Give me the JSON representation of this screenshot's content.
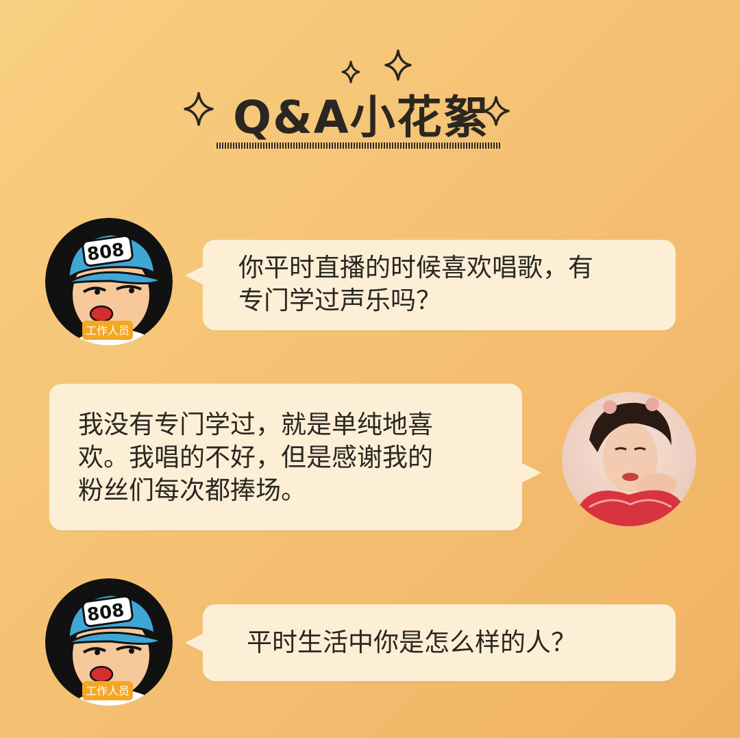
{
  "header": {
    "title": "Q&A小花絮"
  },
  "staff_avatar": {
    "cap_number": "808",
    "badge": "工作人员"
  },
  "messages": [
    {
      "speaker": "staff",
      "text": "你平时直播的时候喜欢唱歌，有\n专门学过声乐吗？"
    },
    {
      "speaker": "guest",
      "text": "我没有专门学过，就是单纯地喜\n欢。我唱的不好，但是感谢我的\n粉丝们每次都捧场。"
    },
    {
      "speaker": "staff",
      "text": "平时生活中你是怎么样的人？"
    }
  ],
  "colors": {
    "bubble": "#fcefd6",
    "text": "#2b2620",
    "cap": "#3fa7d6",
    "badge": "#f5a623",
    "dress": "#d8343f"
  }
}
